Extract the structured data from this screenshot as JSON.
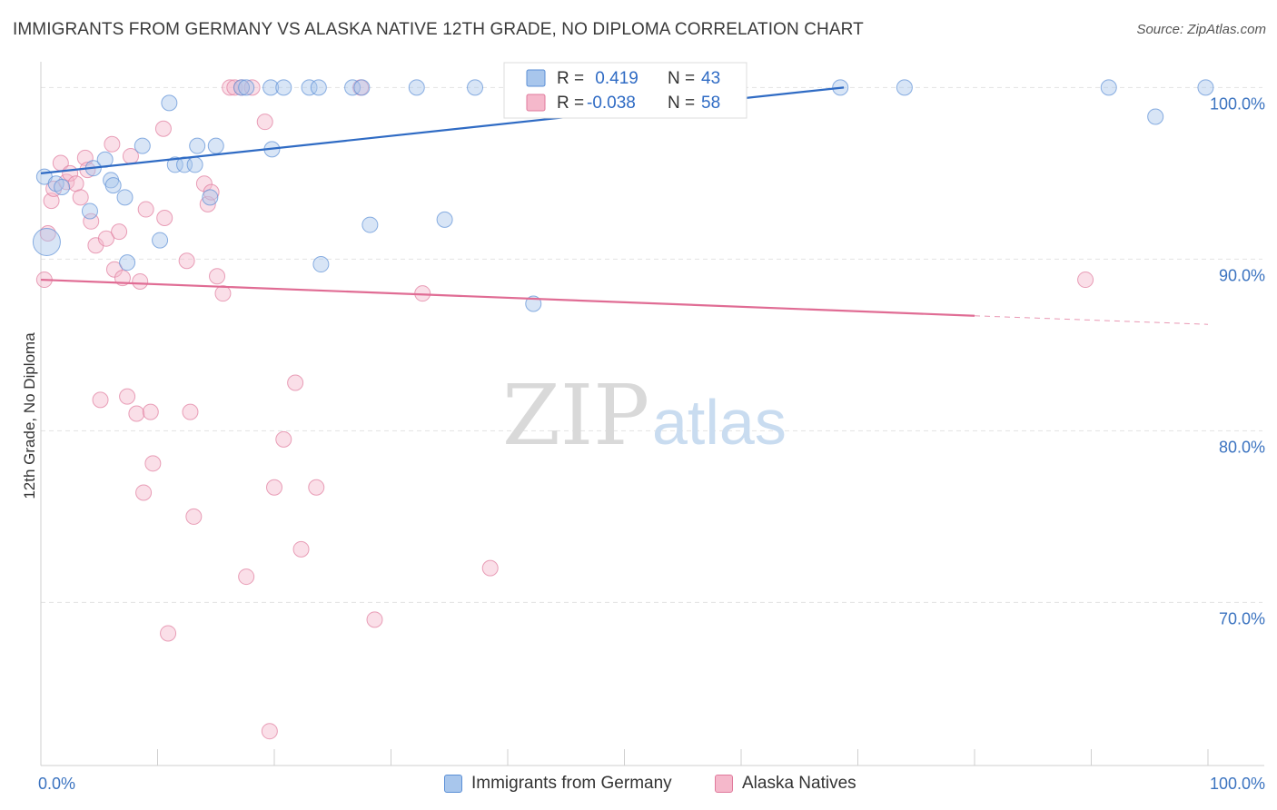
{
  "title": "IMMIGRANTS FROM GERMANY VS ALASKA NATIVE 12TH GRADE, NO DIPLOMA CORRELATION CHART",
  "source": "Source: ZipAtlas.com",
  "watermark": {
    "zip": "ZIP",
    "atlas": "atlas"
  },
  "colors": {
    "blue_fill": "#a8c6ec",
    "blue_stroke": "#5b8fd6",
    "blue_line": "#2f6bc4",
    "pink_fill": "#f5b8cb",
    "pink_stroke": "#e07a9c",
    "pink_line": "#e06c94",
    "tick_text": "#3b73c0",
    "grid": "#e3e3e3"
  },
  "legend_box": {
    "rows": [
      {
        "r_label": "R =",
        "r_value": " 0.419",
        "n_label": "N =",
        "n_value": "43"
      },
      {
        "r_label": "R =",
        "r_value": "-0.038",
        "n_label": "N =",
        "n_value": "58"
      }
    ]
  },
  "bottom_legend": [
    "Immigrants from Germany",
    "Alaska Natives"
  ],
  "chart_data": {
    "type": "scatter",
    "title": "IMMIGRANTS FROM GERMANY VS ALASKA NATIVE 12TH GRADE, NO DIPLOMA CORRELATION CHART",
    "xlabel": "",
    "ylabel": "12th Grade, No Diploma",
    "xlim": [
      0,
      100
    ],
    "ylim": [
      60.5,
      101.5
    ],
    "x_tick_labels": [
      "0.0%",
      "100.0%"
    ],
    "y_ticks": [
      100,
      90,
      80,
      70
    ],
    "y_tick_labels": [
      "100.0%",
      "90.0%",
      "80.0%",
      "70.0%"
    ],
    "grid": true,
    "legend_position": "top-center",
    "series": [
      {
        "name": "Immigrants from Germany",
        "r": 0.419,
        "n": 43,
        "trend": {
          "x0": 0,
          "y0": 95.0,
          "x1": 68.8,
          "y1": 100.0
        },
        "points": [
          [
            0.3,
            94.8,
            12
          ],
          [
            0.5,
            91.0,
            30
          ],
          [
            1.3,
            94.4,
            12
          ],
          [
            1.8,
            94.2,
            12
          ],
          [
            4.2,
            92.8,
            12
          ],
          [
            4.5,
            95.3,
            12
          ],
          [
            5.5,
            95.8,
            12
          ],
          [
            6.0,
            94.6,
            12
          ],
          [
            6.2,
            94.3,
            12
          ],
          [
            7.2,
            93.6,
            12
          ],
          [
            7.4,
            89.8,
            12
          ],
          [
            8.7,
            96.6,
            12
          ],
          [
            10.2,
            91.1,
            12
          ],
          [
            11.0,
            99.1,
            12
          ],
          [
            11.5,
            95.5,
            12
          ],
          [
            12.3,
            95.5,
            12
          ],
          [
            13.2,
            95.5,
            12
          ],
          [
            13.4,
            96.6,
            12
          ],
          [
            14.5,
            93.6,
            12
          ],
          [
            15.0,
            96.6,
            12
          ],
          [
            17.2,
            100.0,
            12
          ],
          [
            17.6,
            100.0,
            12
          ],
          [
            19.7,
            100.0,
            12
          ],
          [
            19.8,
            96.4,
            12
          ],
          [
            20.8,
            100.0,
            12
          ],
          [
            23.0,
            100.0,
            12
          ],
          [
            23.8,
            100.0,
            12
          ],
          [
            24.0,
            89.7,
            12
          ],
          [
            26.7,
            100.0,
            12
          ],
          [
            27.5,
            100.0,
            12
          ],
          [
            28.2,
            92.0,
            12
          ],
          [
            32.2,
            100.0,
            12
          ],
          [
            34.6,
            92.3,
            12
          ],
          [
            37.2,
            100.0,
            12
          ],
          [
            42.2,
            87.4,
            12
          ],
          [
            50.3,
            100.0,
            12
          ],
          [
            53.0,
            100.0,
            12
          ],
          [
            58.5,
            100.0,
            12
          ],
          [
            68.5,
            100.0,
            12
          ],
          [
            74.0,
            100.0,
            12
          ],
          [
            95.5,
            98.3,
            12
          ],
          [
            99.8,
            100.0,
            12
          ],
          [
            91.5,
            100.0,
            12
          ]
        ]
      },
      {
        "name": "Alaska Natives",
        "r": -0.038,
        "n": 58,
        "trend": {
          "x0": 0,
          "y0": 88.8,
          "x1": 80,
          "y1": 86.7
        },
        "trend_dashed": {
          "x0": 80,
          "y0": 86.7,
          "x1": 100,
          "y1": 86.2
        },
        "points": [
          [
            0.3,
            88.8,
            12
          ],
          [
            0.6,
            91.5,
            12
          ],
          [
            0.9,
            93.4,
            12
          ],
          [
            1.1,
            94.1,
            12
          ],
          [
            1.7,
            95.6,
            12
          ],
          [
            2.2,
            94.5,
            12
          ],
          [
            2.5,
            95.0,
            12
          ],
          [
            3.0,
            94.4,
            12
          ],
          [
            3.4,
            93.6,
            12
          ],
          [
            3.8,
            95.9,
            12
          ],
          [
            4.0,
            95.2,
            12
          ],
          [
            4.3,
            92.2,
            12
          ],
          [
            4.7,
            90.8,
            12
          ],
          [
            5.1,
            81.8,
            12
          ],
          [
            5.6,
            91.2,
            12
          ],
          [
            6.1,
            96.7,
            12
          ],
          [
            6.3,
            89.4,
            12
          ],
          [
            6.7,
            91.6,
            12
          ],
          [
            7.0,
            88.9,
            12
          ],
          [
            7.4,
            82.0,
            12
          ],
          [
            7.7,
            96.0,
            12
          ],
          [
            8.2,
            81.0,
            12
          ],
          [
            8.5,
            88.7,
            12
          ],
          [
            8.8,
            76.4,
            12
          ],
          [
            9.0,
            92.9,
            12
          ],
          [
            9.4,
            81.1,
            12
          ],
          [
            9.6,
            78.1,
            12
          ],
          [
            10.5,
            97.6,
            12
          ],
          [
            10.6,
            92.4,
            12
          ],
          [
            10.9,
            68.2,
            12
          ],
          [
            12.5,
            89.9,
            12
          ],
          [
            12.8,
            81.1,
            12
          ],
          [
            13.1,
            75.0,
            12
          ],
          [
            14.0,
            94.4,
            12
          ],
          [
            14.3,
            93.2,
            12
          ],
          [
            14.6,
            93.9,
            12
          ],
          [
            15.1,
            89.0,
            12
          ],
          [
            15.6,
            88.0,
            12
          ],
          [
            16.2,
            100.0,
            12
          ],
          [
            16.6,
            100.0,
            12
          ],
          [
            17.2,
            100.0,
            12
          ],
          [
            17.6,
            71.5,
            12
          ],
          [
            18.1,
            100.0,
            12
          ],
          [
            19.2,
            98.0,
            12
          ],
          [
            19.6,
            62.5,
            12
          ],
          [
            20.0,
            76.7,
            12
          ],
          [
            20.8,
            79.5,
            12
          ],
          [
            21.8,
            82.8,
            12
          ],
          [
            22.3,
            73.1,
            12
          ],
          [
            23.6,
            76.7,
            12
          ],
          [
            27.4,
            100.0,
            12
          ],
          [
            28.6,
            69.0,
            12
          ],
          [
            32.7,
            88.0,
            12
          ],
          [
            38.5,
            72.0,
            12
          ],
          [
            40.6,
            100.0,
            12
          ],
          [
            48.0,
            100.0,
            12
          ],
          [
            52.0,
            100.0,
            12
          ],
          [
            89.5,
            88.8,
            12
          ]
        ]
      }
    ]
  }
}
